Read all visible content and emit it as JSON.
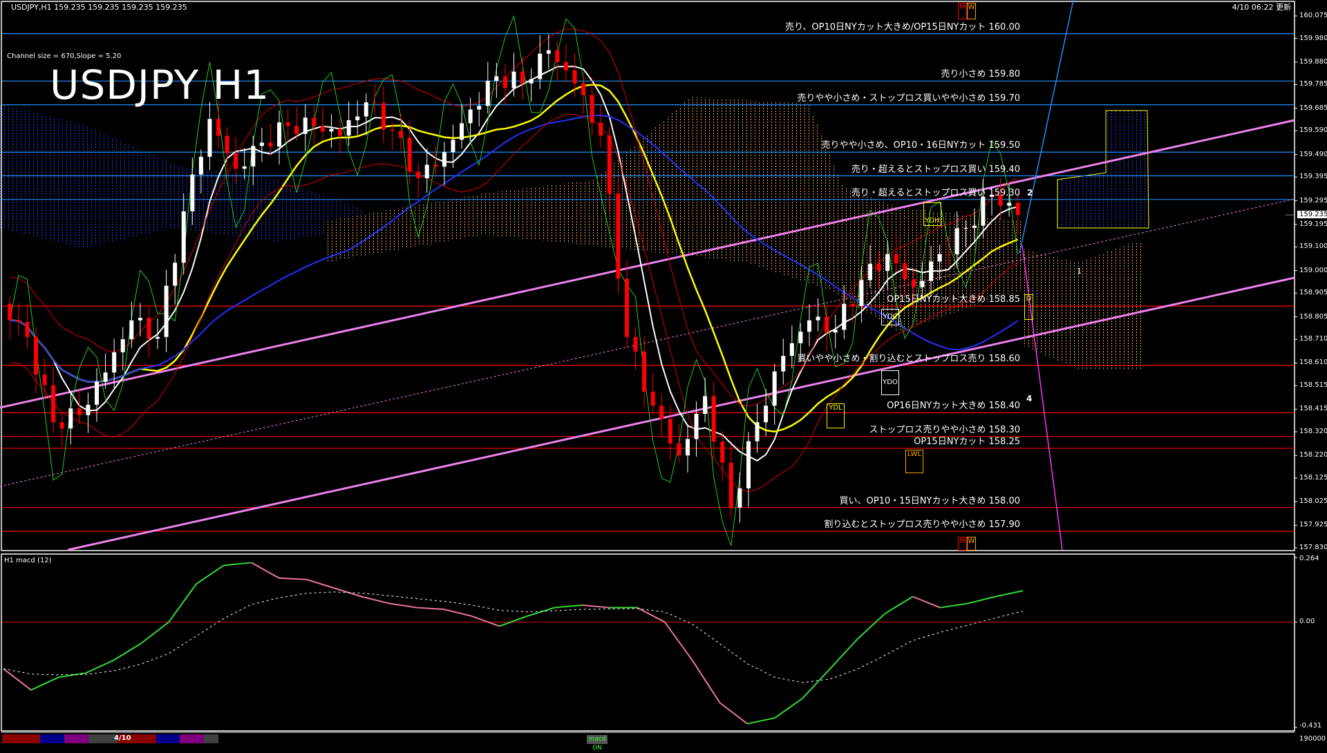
{
  "header": {
    "symbol_line": "USDJPY,H1  159.235 159.235 159.235 159.235",
    "channel_info": "Channel size = 670,Slope = 5.20",
    "big_title": "USDJPY H1",
    "updated": "4/10 06:22 更新"
  },
  "levels": [
    {
      "text": "売り、OP10日NYカット大きめ/OP15日NYカット 160.00",
      "price": 160.0,
      "color": "#1e90ff"
    },
    {
      "text": "売り小さめ 159.80",
      "price": 159.8,
      "color": "#1e90ff"
    },
    {
      "text": "売りやや小さめ・ストップロス買いやや小さめ 159.70",
      "price": 159.7,
      "color": "#1e90ff"
    },
    {
      "text": "売りやや小さめ、OP10・16日NYカット 159.50",
      "price": 159.5,
      "color": "#1e90ff"
    },
    {
      "text": "売り・超えるとストップロス買い 159.40",
      "price": 159.4,
      "color": "#1e90ff"
    },
    {
      "text": "売り・超えるとストップロス買い 159.30",
      "price": 159.3,
      "color": "#1e90ff"
    },
    {
      "text": "OP15日NYカット大きめ 158.85",
      "price": 158.85,
      "color": "#ff0000"
    },
    {
      "text": "買いやや小さめ・割り込むとストップロス売り 158.60",
      "price": 158.6,
      "color": "#ff0000"
    },
    {
      "text": "OP16日NYカット大きめ 158.40",
      "price": 158.4,
      "color": "#ff0000"
    },
    {
      "text": "ストップロス売りやや小さめ 158.30",
      "price": 158.3,
      "color": "#ff0000"
    },
    {
      "text": "OP15日NYカット 158.25",
      "price": 158.25,
      "color": "#ff0000"
    },
    {
      "text": "買い、OP10・15日NYカット大きめ 158.00",
      "price": 158.0,
      "color": "#ff0000"
    },
    {
      "text": "割り込むとストップロス売りやや小さめ 157.90",
      "price": 157.9,
      "color": "#ff0000"
    }
  ],
  "price_axis": [
    "160.075",
    "159.980",
    "159.880",
    "159.785",
    "159.685",
    "159.590",
    "159.490",
    "159.395",
    "159.295",
    "159.195",
    "159.100",
    "159.000",
    "158.905",
    "158.805",
    "158.710",
    "158.610",
    "158.515",
    "158.415",
    "158.320",
    "158.220",
    "158.125",
    "158.025",
    "157.925",
    "157.830"
  ],
  "current_price": "159.235",
  "markers": {
    "mw": [
      "M",
      "W"
    ],
    "ydh": "YDH",
    "ydc": "YDC",
    "ydo": "YDO",
    "ydl": "YDL",
    "lwl": "LWL",
    "d": "D",
    "wave2": "2",
    "wave1": "1",
    "wave4": "4"
  },
  "macd_panel": {
    "title": "H1  macd (12)",
    "axis": [
      "0.264",
      "0.00",
      "-0.431"
    ],
    "volume_label": "190000",
    "toggle": "macd ON"
  },
  "status_bar": {
    "date": "4/10",
    "colors": [
      "#8b0000",
      "#00008b",
      "#800080",
      "#404040",
      "#8b0000",
      "#00008b",
      "#800080",
      "#404040"
    ]
  },
  "colors": {
    "bull": "#ffffff",
    "bear": "#ff0000",
    "macd_up": "#33dd33",
    "macd_down": "#ee7799",
    "channel": "#ee82ee"
  },
  "chart_data": [
    {
      "type": "candlestick",
      "title": "USDJPY H1",
      "ylim": [
        157.83,
        160.075
      ],
      "closes": [
        158.86,
        158.72,
        158.36,
        158.39,
        158.57,
        158.79,
        158.72,
        159.25,
        159.64,
        159.43,
        159.54,
        159.61,
        159.61,
        159.57,
        159.71,
        159.59,
        159.39,
        159.5,
        159.68,
        159.82,
        159.79,
        159.93,
        159.79,
        159.57,
        158.72,
        158.43,
        158.22,
        158.47,
        158.0,
        158.36,
        158.64,
        158.79,
        158.75,
        158.96,
        159.07,
        158.93,
        159.07,
        159.18,
        159.32,
        159.235
      ]
    },
    {
      "type": "line",
      "title": "H1  macd (12)",
      "ylim": [
        -0.431,
        0.264
      ],
      "macd": [
        -0.191,
        -0.278,
        -0.226,
        -0.208,
        -0.156,
        -0.087,
        0.0,
        0.156,
        0.232,
        0.243,
        0.18,
        0.174,
        0.139,
        0.104,
        0.076,
        0.059,
        0.052,
        0.024,
        -0.017,
        0.024,
        0.059,
        0.069,
        0.059,
        0.059,
        0.0,
        -0.156,
        -0.33,
        -0.416,
        -0.392,
        -0.312,
        -0.191,
        -0.069,
        0.035,
        0.104,
        0.059,
        0.076,
        0.104,
        0.128
      ]
    }
  ]
}
